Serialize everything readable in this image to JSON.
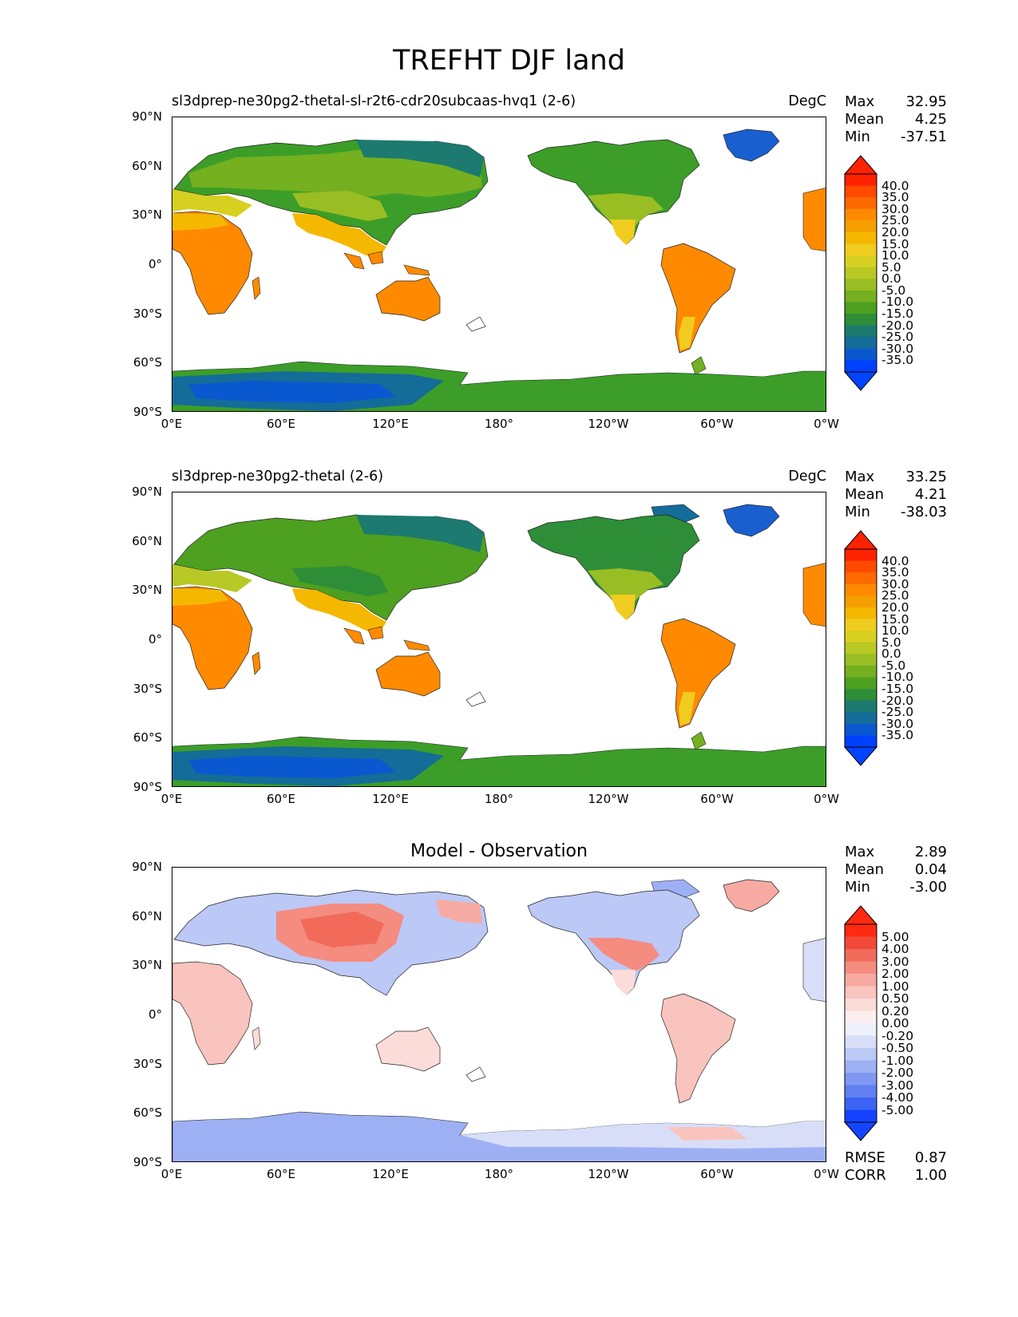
{
  "figure": {
    "title": "TREFHT DJF land",
    "lat_ticks": [
      "90°N",
      "60°N",
      "30°N",
      "0°",
      "30°S",
      "60°S",
      "90°S"
    ],
    "lon_ticks": [
      "0°E",
      "60°E",
      "120°E",
      "180°",
      "120°W",
      "60°W",
      "0°W"
    ]
  },
  "panels": [
    {
      "title": "sl3dprep-ne30pg2-thetal-sl-r2t6-cdr20subcaas-hvq1 (2-6)",
      "units": "DegC",
      "stats": {
        "max_label": "Max",
        "max": "32.95",
        "mean_label": "Mean",
        "mean": "4.25",
        "min_label": "Min",
        "min": "-37.51"
      },
      "colorbar": {
        "labels": [
          "40.0",
          "35.0",
          "30.0",
          "25.0",
          "20.0",
          "15.0",
          "10.0",
          "5.0",
          "0.0",
          "-5.0",
          "-10.0",
          "-15.0",
          "-20.0",
          "-25.0",
          "-30.0",
          "-35.0"
        ],
        "colors": [
          "#ff2200",
          "#ff4a00",
          "#ff6a00",
          "#ff8a00",
          "#f5a000",
          "#f5b800",
          "#f0cc20",
          "#d8d020",
          "#b8c824",
          "#98be24",
          "#74b020",
          "#4ea020",
          "#2e8e38",
          "#1c7a70",
          "#146c98",
          "#0a58d0",
          "#0040ff"
        ],
        "over_color": "#ff2200",
        "under_color": "#0044ff"
      }
    },
    {
      "title": "sl3dprep-ne30pg2-thetal (2-6)",
      "units": "DegC",
      "stats": {
        "max_label": "Max",
        "max": "33.25",
        "mean_label": "Mean",
        "mean": "4.21",
        "min_label": "Min",
        "min": "-38.03"
      },
      "colorbar": {
        "labels": [
          "40.0",
          "35.0",
          "30.0",
          "25.0",
          "20.0",
          "15.0",
          "10.0",
          "5.0",
          "0.0",
          "-5.0",
          "-10.0",
          "-15.0",
          "-20.0",
          "-25.0",
          "-30.0",
          "-35.0"
        ],
        "colors": [
          "#ff2200",
          "#ff4a00",
          "#ff6a00",
          "#ff8a00",
          "#f5a000",
          "#f5b800",
          "#f0cc20",
          "#d8d020",
          "#b8c824",
          "#98be24",
          "#74b020",
          "#4ea020",
          "#2e8e38",
          "#1c7a70",
          "#146c98",
          "#0a58d0",
          "#0040ff"
        ],
        "over_color": "#ff2200",
        "under_color": "#0044ff"
      }
    },
    {
      "title": "Model - Observation",
      "units": "",
      "stats": {
        "max_label": "Max",
        "max": "2.89",
        "mean_label": "Mean",
        "mean": "0.04",
        "min_label": "Min",
        "min": "-3.00"
      },
      "extra_stats": {
        "rmse_label": "RMSE",
        "rmse": "0.87",
        "corr_label": "CORR",
        "corr": "1.00"
      },
      "colorbar": {
        "labels": [
          "5.00",
          "4.00",
          "3.00",
          "2.00",
          "1.00",
          "0.50",
          "0.20",
          "0.00",
          "-0.20",
          "-0.50",
          "-1.00",
          "-2.00",
          "-3.00",
          "-4.00",
          "-5.00"
        ],
        "colors": [
          "#ff2a10",
          "#f24a38",
          "#f26a5a",
          "#f48c80",
          "#f7aaa2",
          "#fac4be",
          "#fcdcd8",
          "#fbf0ef",
          "#eef0fb",
          "#d8def8",
          "#bcc8f6",
          "#9eb0f4",
          "#8098f2",
          "#6080f2",
          "#3c64f4",
          "#1444ff"
        ],
        "over_color": "#ff2a10",
        "under_color": "#1444ff"
      }
    }
  ]
}
